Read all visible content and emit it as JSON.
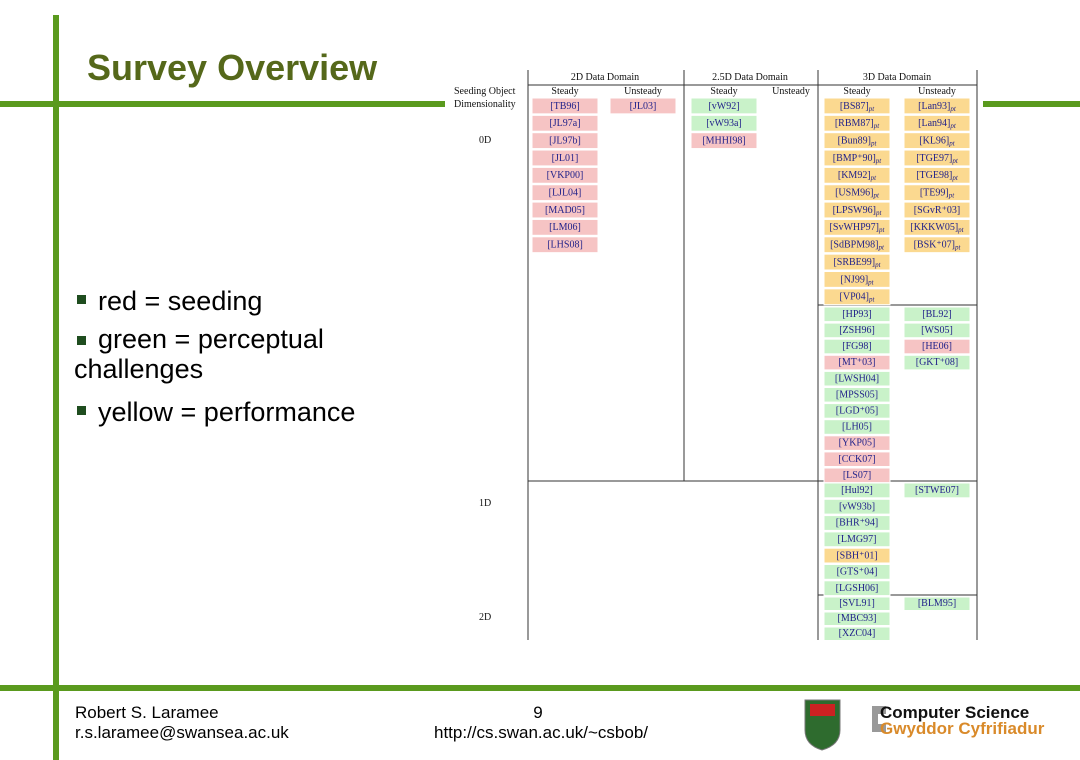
{
  "title": "Survey Overview",
  "bullets": [
    "red = seeding",
    "green = perceptual challenges",
    "yellow = performance"
  ],
  "table": {
    "domains": [
      "2D Data Domain",
      "2.5D Data Domain",
      "3D Data Domain"
    ],
    "corner": [
      "Seeding Object",
      "Dimensionality"
    ],
    "row_labels": [
      "0D",
      "1D",
      "2D"
    ],
    "columns": [
      {
        "header": "Steady",
        "sections": [
          [
            {
              "label": "[TB96]",
              "color": "#f6c4c4"
            },
            {
              "label": "[JL97a]",
              "color": "#f6c4c4"
            },
            {
              "label": "[JL97b]",
              "color": "#f6c4c4"
            },
            {
              "label": "[JL01]",
              "color": "#f6c4c4"
            },
            {
              "label": "[VKP00]",
              "color": "#f6c4c4"
            },
            {
              "label": "[LJL04]",
              "color": "#f6c4c4"
            },
            {
              "label": "[MAD05]",
              "color": "#f6c4c4"
            },
            {
              "label": "[LM06]",
              "color": "#f6c4c4"
            },
            {
              "label": "[LHS08]",
              "color": "#f6c4c4"
            }
          ]
        ]
      },
      {
        "header": "Unsteady",
        "sections": [
          [
            {
              "label": "[JL03]",
              "color": "#f6c4c4"
            }
          ]
        ]
      },
      {
        "header": "Steady",
        "sections": [
          [
            {
              "label": "[vW92]",
              "color": "#c9f2c9"
            },
            {
              "label": "[vW93a]",
              "color": "#c9f2c9"
            },
            {
              "label": "[MHHI98]",
              "color": "#f6c4c4"
            }
          ]
        ]
      },
      {
        "header": "Unsteady",
        "sections": []
      },
      {
        "header": "Steady",
        "sections": [
          [
            {
              "label": "[BS87]",
              "sub": "pt",
              "color": "#fbd990"
            },
            {
              "label": "[RBM87]",
              "sub": "pt",
              "color": "#fbd990"
            },
            {
              "label": "[Bun89]",
              "sub": "pt",
              "color": "#fbd990"
            },
            {
              "label": "[BMP⁺90]",
              "sub": "pt",
              "color": "#fbd990"
            },
            {
              "label": "[KM92]",
              "sub": "pt",
              "color": "#fbd990"
            },
            {
              "label": "[USM96]",
              "sub": "pt",
              "color": "#fbd990"
            },
            {
              "label": "[LPSW96]",
              "sub": "pt",
              "color": "#fbd990"
            },
            {
              "label": "[SvWHP97]",
              "sub": "pt",
              "color": "#fbd990"
            },
            {
              "label": "[SdBPM98]",
              "sub": "pt",
              "color": "#fbd990"
            },
            {
              "label": "[SRBE99]",
              "sub": "pt",
              "color": "#fbd990"
            },
            {
              "label": "[NJ99]",
              "sub": "pt",
              "color": "#fbd990"
            },
            {
              "label": "[VP04]",
              "sub": "pt",
              "color": "#fbd990"
            }
          ],
          [
            {
              "label": "[HP93]",
              "color": "#c9f2c9"
            },
            {
              "label": "[ZSH96]",
              "color": "#c9f2c9"
            },
            {
              "label": "[FG98]",
              "color": "#c9f2c9"
            },
            {
              "label": "[MT⁺03]",
              "color": "#f6c4c4"
            },
            {
              "label": "[LWSH04]",
              "color": "#c9f2c9"
            },
            {
              "label": "[MPSS05]",
              "color": "#c9f2c9"
            },
            {
              "label": "[LGD⁺05]",
              "color": "#c9f2c9"
            },
            {
              "label": "[LH05]",
              "color": "#c9f2c9"
            },
            {
              "label": "[YKP05]",
              "color": "#f6c4c4"
            },
            {
              "label": "[CCK07]",
              "color": "#f6c4c4"
            },
            {
              "label": "[LS07]",
              "color": "#f6c4c4"
            }
          ],
          [
            {
              "label": "[Hul92]",
              "color": "#c9f2c9"
            },
            {
              "label": "[vW93b]",
              "color": "#c9f2c9"
            },
            {
              "label": "[BHR⁺94]",
              "color": "#c9f2c9"
            },
            {
              "label": "[LMG97]",
              "color": "#c9f2c9"
            },
            {
              "label": "[SBH⁺01]",
              "color": "#fbd990"
            },
            {
              "label": "[GTS⁺04]",
              "color": "#c9f2c9"
            },
            {
              "label": "[LGSH06]",
              "color": "#c9f2c9"
            }
          ],
          [
            {
              "label": "[SVL91]",
              "color": "#c9f2c9"
            },
            {
              "label": "[MBC93]",
              "color": "#c9f2c9"
            },
            {
              "label": "[XZC04]",
              "color": "#c9f2c9"
            }
          ]
        ]
      },
      {
        "header": "Unsteady",
        "sections": [
          [
            {
              "label": "[Lan93]",
              "sub": "pt",
              "color": "#fbd990"
            },
            {
              "label": "[Lan94]",
              "sub": "pt",
              "color": "#fbd990"
            },
            {
              "label": "[KL96]",
              "sub": "pt",
              "color": "#fbd990"
            },
            {
              "label": "[TGE97]",
              "sub": "pt",
              "color": "#fbd990"
            },
            {
              "label": "[TGE98]",
              "sub": "pt",
              "color": "#fbd990"
            },
            {
              "label": "[TE99]",
              "sub": "pt",
              "color": "#fbd990"
            },
            {
              "label": "[SGvR⁺03]",
              "color": "#fbd990"
            },
            {
              "label": "[KKKW05]",
              "sub": "pt",
              "color": "#fbd990"
            },
            {
              "label": "[BSK⁺07]",
              "sub": "pt",
              "color": "#fbd990"
            }
          ],
          [
            {
              "label": "[BL92]",
              "color": "#c9f2c9"
            },
            {
              "label": "[WS05]",
              "color": "#c9f2c9"
            },
            {
              "label": "[HE06]",
              "color": "#f6c4c4"
            },
            {
              "label": "[GKT⁺08]",
              "color": "#c9f2c9"
            }
          ],
          [
            {
              "label": "[STWE07]",
              "color": "#c9f2c9"
            }
          ],
          [
            {
              "label": "[BLM95]",
              "color": "#c9f2c9"
            }
          ]
        ]
      }
    ]
  },
  "footer": {
    "author": "Robert S. Laramee",
    "email": "r.s.laramee@swansea.ac.uk",
    "page": "9",
    "url": "http://cs.swan.ac.uk/~csbob/",
    "dept": "Computer Science",
    "dept_welsh": "Gwyddor Cyfrifiadur"
  }
}
